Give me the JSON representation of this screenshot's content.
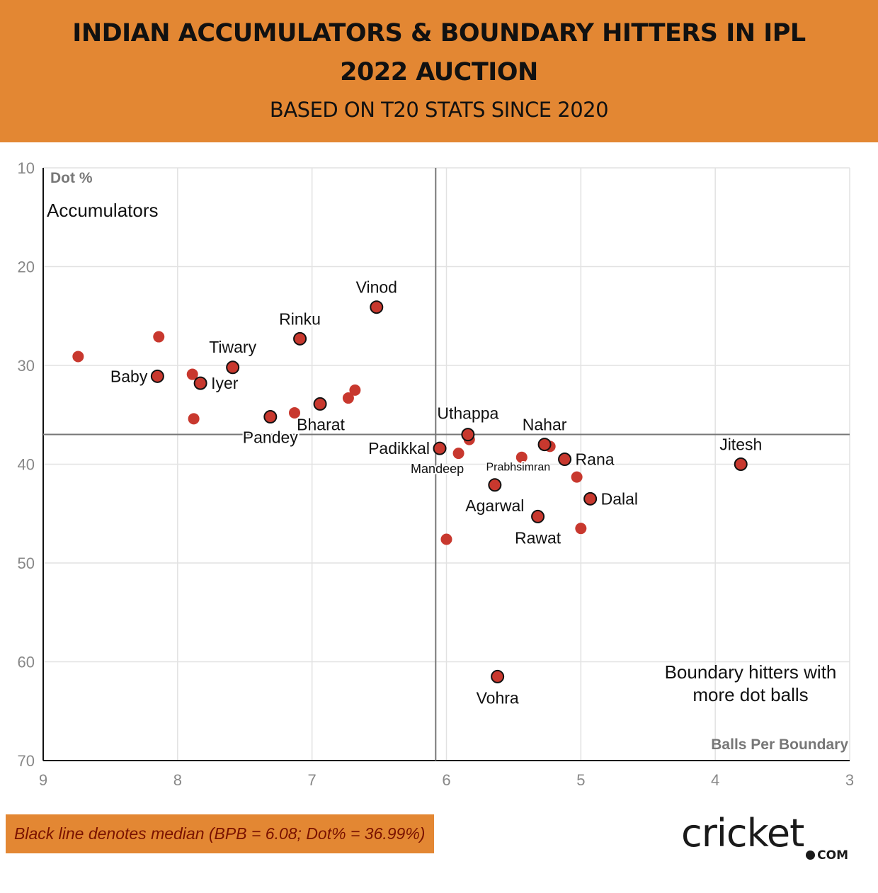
{
  "header": {
    "title": "INDIAN ACCUMULATORS & BOUNDARY HITTERS IN IPL 2022 AUCTION",
    "subtitle": "BASED ON T20 STATS SINCE 2020"
  },
  "chart_data": {
    "type": "scatter",
    "title": "INDIAN ACCUMULATORS & BOUNDARY HITTERS IN IPL 2022 AUCTION",
    "subtitle": "BASED ON T20 STATS SINCE 2020",
    "xlabel": "Balls Per Boundary",
    "ylabel": "Dot %",
    "xlim": [
      9,
      3
    ],
    "ylim": [
      10,
      70
    ],
    "x_reversed": true,
    "y_reversed": true,
    "xticks": [
      9,
      8,
      7,
      6,
      5,
      4,
      3
    ],
    "yticks": [
      10,
      20,
      30,
      40,
      50,
      60,
      70
    ],
    "grid": true,
    "median": {
      "x": 6.08,
      "y": 36.99
    },
    "quadrant_labels": {
      "top_left": "Accumulators",
      "bottom_right": "Boundary hitters with more dot balls"
    },
    "colors": {
      "point": "#C8382E",
      "outline": "#111111",
      "median_line": "#777777",
      "grid": "#e2e2e2"
    },
    "points": [
      {
        "name": "Vinod",
        "x": 6.52,
        "y": 24.1,
        "highlighted": true
      },
      {
        "name": "Rinku",
        "x": 7.09,
        "y": 27.3,
        "highlighted": true
      },
      {
        "name": "Tiwary",
        "x": 7.59,
        "y": 30.2,
        "highlighted": true
      },
      {
        "name": "Baby",
        "x": 8.15,
        "y": 31.1,
        "highlighted": true
      },
      {
        "name": "Iyer",
        "x": 7.83,
        "y": 31.8,
        "highlighted": true
      },
      {
        "name": "Pandey",
        "x": 7.31,
        "y": 35.2,
        "highlighted": true
      },
      {
        "name": "Bharat",
        "x": 6.94,
        "y": 33.9,
        "highlighted": true
      },
      {
        "name": "Uthappa",
        "x": 5.84,
        "y": 37.0,
        "highlighted": true
      },
      {
        "name": "Padikkal",
        "x": 6.05,
        "y": 38.4,
        "highlighted": true
      },
      {
        "name": "Nahar",
        "x": 5.27,
        "y": 38.0,
        "highlighted": true
      },
      {
        "name": "Rana",
        "x": 5.12,
        "y": 39.5,
        "highlighted": true
      },
      {
        "name": "Jitesh",
        "x": 3.81,
        "y": 40.0,
        "highlighted": true
      },
      {
        "name": "Agarwal",
        "x": 5.64,
        "y": 42.1,
        "highlighted": true
      },
      {
        "name": "Dalal",
        "x": 4.93,
        "y": 43.5,
        "highlighted": true
      },
      {
        "name": "Rawat",
        "x": 5.32,
        "y": 45.3,
        "highlighted": true
      },
      {
        "name": "Vohra",
        "x": 5.62,
        "y": 61.5,
        "highlighted": true
      },
      {
        "name": "Mandeep",
        "x": 5.91,
        "y": 38.9,
        "highlighted": false
      },
      {
        "name": "Prabhsimran",
        "x": 5.44,
        "y": 39.3,
        "highlighted": false
      },
      {
        "name": "",
        "x": 8.74,
        "y": 29.1,
        "highlighted": false
      },
      {
        "name": "",
        "x": 8.14,
        "y": 27.1,
        "highlighted": false
      },
      {
        "name": "",
        "x": 7.89,
        "y": 30.9,
        "highlighted": false
      },
      {
        "name": "",
        "x": 7.88,
        "y": 35.4,
        "highlighted": false
      },
      {
        "name": "",
        "x": 7.13,
        "y": 34.8,
        "highlighted": false
      },
      {
        "name": "",
        "x": 6.73,
        "y": 33.3,
        "highlighted": false
      },
      {
        "name": "",
        "x": 6.68,
        "y": 32.5,
        "highlighted": false
      },
      {
        "name": "",
        "x": 5.83,
        "y": 37.5,
        "highlighted": false
      },
      {
        "name": "",
        "x": 5.23,
        "y": 38.2,
        "highlighted": false
      },
      {
        "name": "",
        "x": 5.03,
        "y": 41.3,
        "highlighted": false
      },
      {
        "name": "",
        "x": 5.0,
        "y": 46.5,
        "highlighted": false
      },
      {
        "name": "",
        "x": 6.0,
        "y": 47.6,
        "highlighted": false
      }
    ]
  },
  "footer": {
    "note": "Black line denotes median (BPB = 6.08; Dot% = 36.99%)",
    "logo_text": "cricket",
    "logo_suffix": "COM"
  }
}
